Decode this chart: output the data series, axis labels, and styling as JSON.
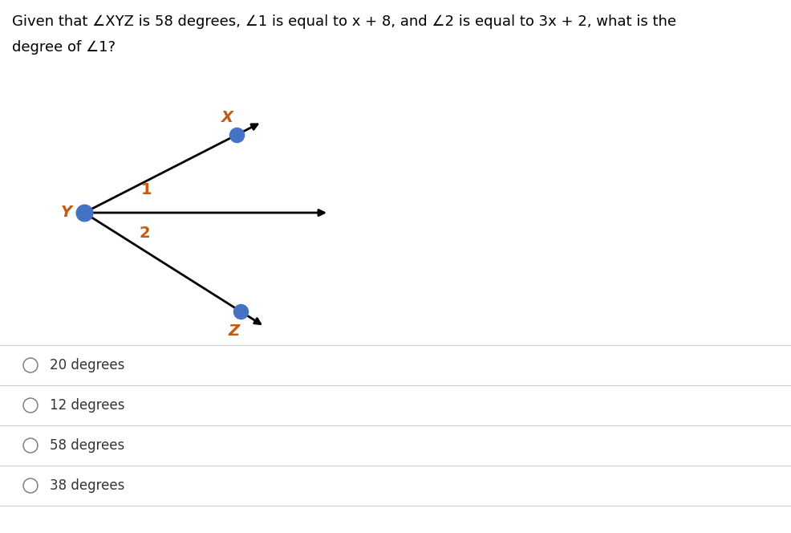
{
  "title_line1": "Given that ∠XYZ is 58 degrees, ∠1 is equal to x + 8, and ∠2 is equal to 3x + 2, what is the",
  "title_line2": "degree of ∠1?",
  "background_color": "#ffffff",
  "dot_color": "#4472C4",
  "line_color": "#000000",
  "label_color": "#C55A11",
  "angle1_label": "1",
  "angle2_label": "2",
  "X_label": "X",
  "Y_label": "Y",
  "Z_label": "Z",
  "choices": [
    "20 degrees",
    "12 degrees",
    "58 degrees",
    "38 degrees"
  ],
  "choice_fontsize": 12,
  "divider_color": "#cccccc",
  "title_fontsize": 13,
  "label_fontsize": 14,
  "fig_width": 9.86,
  "fig_height": 6.64,
  "dpi": 100
}
